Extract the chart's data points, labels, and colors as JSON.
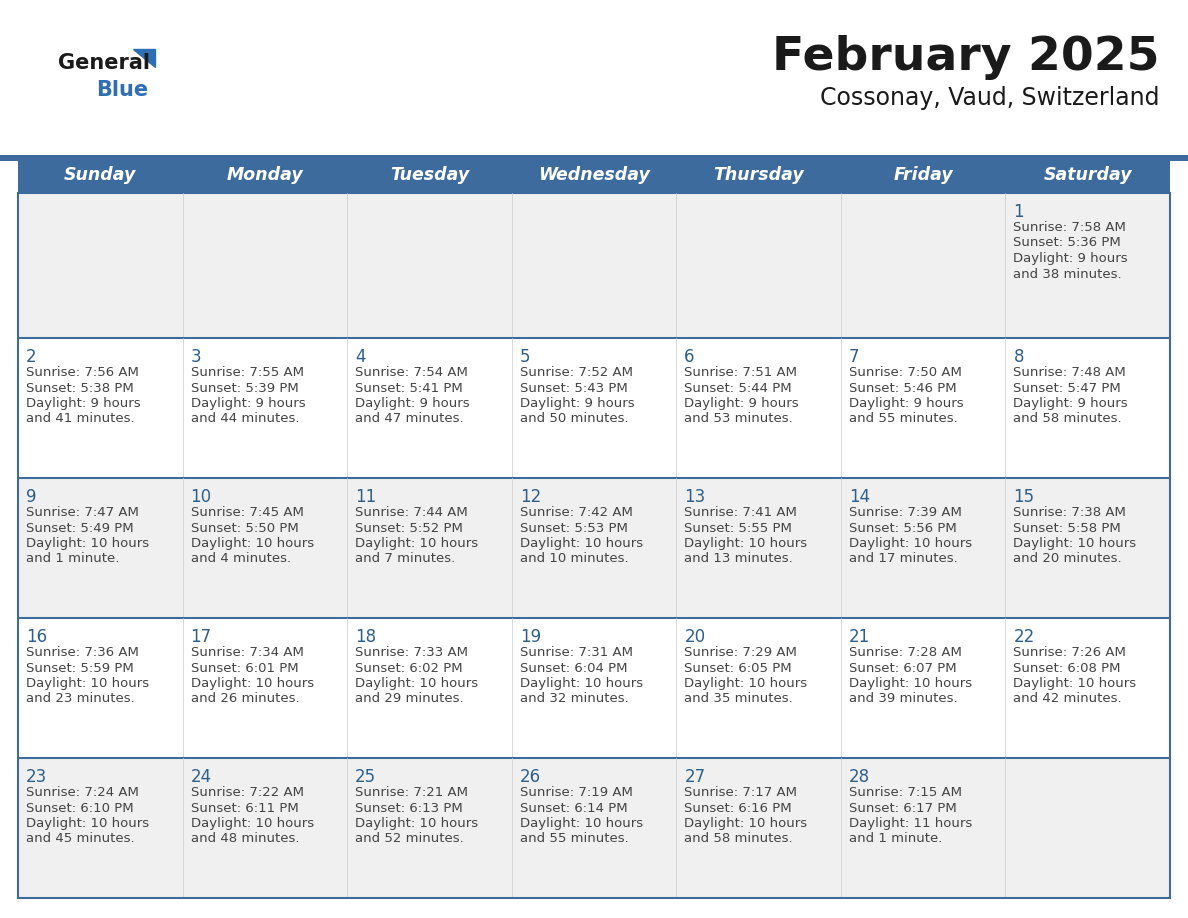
{
  "title": "February 2025",
  "subtitle": "Cossonay, Vaud, Switzerland",
  "header_bg_color": "#3d6b9e",
  "header_text_color": "#ffffff",
  "day_headers": [
    "Sunday",
    "Monday",
    "Tuesday",
    "Wednesday",
    "Thursday",
    "Friday",
    "Saturday"
  ],
  "row_bg_week1": "#f0f0f0",
  "row_bg_even": "#f0f0f0",
  "row_bg_odd": "#ffffff",
  "cell_border_color": "#3d6b9e",
  "date_text_color": "#2e5f8a",
  "info_text_color": "#444444",
  "logo_general_color": "#1a1a1a",
  "logo_blue_color": "#2e6eb5",
  "logo_triangle_color": "#2e6eb5",
  "calendar_data": [
    [
      null,
      null,
      null,
      null,
      null,
      null,
      {
        "day": 1,
        "sunrise": "7:58 AM",
        "sunset": "5:36 PM",
        "daylight": "9 hours\nand 38 minutes."
      }
    ],
    [
      {
        "day": 2,
        "sunrise": "7:56 AM",
        "sunset": "5:38 PM",
        "daylight": "9 hours\nand 41 minutes."
      },
      {
        "day": 3,
        "sunrise": "7:55 AM",
        "sunset": "5:39 PM",
        "daylight": "9 hours\nand 44 minutes."
      },
      {
        "day": 4,
        "sunrise": "7:54 AM",
        "sunset": "5:41 PM",
        "daylight": "9 hours\nand 47 minutes."
      },
      {
        "day": 5,
        "sunrise": "7:52 AM",
        "sunset": "5:43 PM",
        "daylight": "9 hours\nand 50 minutes."
      },
      {
        "day": 6,
        "sunrise": "7:51 AM",
        "sunset": "5:44 PM",
        "daylight": "9 hours\nand 53 minutes."
      },
      {
        "day": 7,
        "sunrise": "7:50 AM",
        "sunset": "5:46 PM",
        "daylight": "9 hours\nand 55 minutes."
      },
      {
        "day": 8,
        "sunrise": "7:48 AM",
        "sunset": "5:47 PM",
        "daylight": "9 hours\nand 58 minutes."
      }
    ],
    [
      {
        "day": 9,
        "sunrise": "7:47 AM",
        "sunset": "5:49 PM",
        "daylight": "10 hours\nand 1 minute."
      },
      {
        "day": 10,
        "sunrise": "7:45 AM",
        "sunset": "5:50 PM",
        "daylight": "10 hours\nand 4 minutes."
      },
      {
        "day": 11,
        "sunrise": "7:44 AM",
        "sunset": "5:52 PM",
        "daylight": "10 hours\nand 7 minutes."
      },
      {
        "day": 12,
        "sunrise": "7:42 AM",
        "sunset": "5:53 PM",
        "daylight": "10 hours\nand 10 minutes."
      },
      {
        "day": 13,
        "sunrise": "7:41 AM",
        "sunset": "5:55 PM",
        "daylight": "10 hours\nand 13 minutes."
      },
      {
        "day": 14,
        "sunrise": "7:39 AM",
        "sunset": "5:56 PM",
        "daylight": "10 hours\nand 17 minutes."
      },
      {
        "day": 15,
        "sunrise": "7:38 AM",
        "sunset": "5:58 PM",
        "daylight": "10 hours\nand 20 minutes."
      }
    ],
    [
      {
        "day": 16,
        "sunrise": "7:36 AM",
        "sunset": "5:59 PM",
        "daylight": "10 hours\nand 23 minutes."
      },
      {
        "day": 17,
        "sunrise": "7:34 AM",
        "sunset": "6:01 PM",
        "daylight": "10 hours\nand 26 minutes."
      },
      {
        "day": 18,
        "sunrise": "7:33 AM",
        "sunset": "6:02 PM",
        "daylight": "10 hours\nand 29 minutes."
      },
      {
        "day": 19,
        "sunrise": "7:31 AM",
        "sunset": "6:04 PM",
        "daylight": "10 hours\nand 32 minutes."
      },
      {
        "day": 20,
        "sunrise": "7:29 AM",
        "sunset": "6:05 PM",
        "daylight": "10 hours\nand 35 minutes."
      },
      {
        "day": 21,
        "sunrise": "7:28 AM",
        "sunset": "6:07 PM",
        "daylight": "10 hours\nand 39 minutes."
      },
      {
        "day": 22,
        "sunrise": "7:26 AM",
        "sunset": "6:08 PM",
        "daylight": "10 hours\nand 42 minutes."
      }
    ],
    [
      {
        "day": 23,
        "sunrise": "7:24 AM",
        "sunset": "6:10 PM",
        "daylight": "10 hours\nand 45 minutes."
      },
      {
        "day": 24,
        "sunrise": "7:22 AM",
        "sunset": "6:11 PM",
        "daylight": "10 hours\nand 48 minutes."
      },
      {
        "day": 25,
        "sunrise": "7:21 AM",
        "sunset": "6:13 PM",
        "daylight": "10 hours\nand 52 minutes."
      },
      {
        "day": 26,
        "sunrise": "7:19 AM",
        "sunset": "6:14 PM",
        "daylight": "10 hours\nand 55 minutes."
      },
      {
        "day": 27,
        "sunrise": "7:17 AM",
        "sunset": "6:16 PM",
        "daylight": "10 hours\nand 58 minutes."
      },
      {
        "day": 28,
        "sunrise": "7:15 AM",
        "sunset": "6:17 PM",
        "daylight": "11 hours\nand 1 minute."
      },
      null
    ]
  ]
}
